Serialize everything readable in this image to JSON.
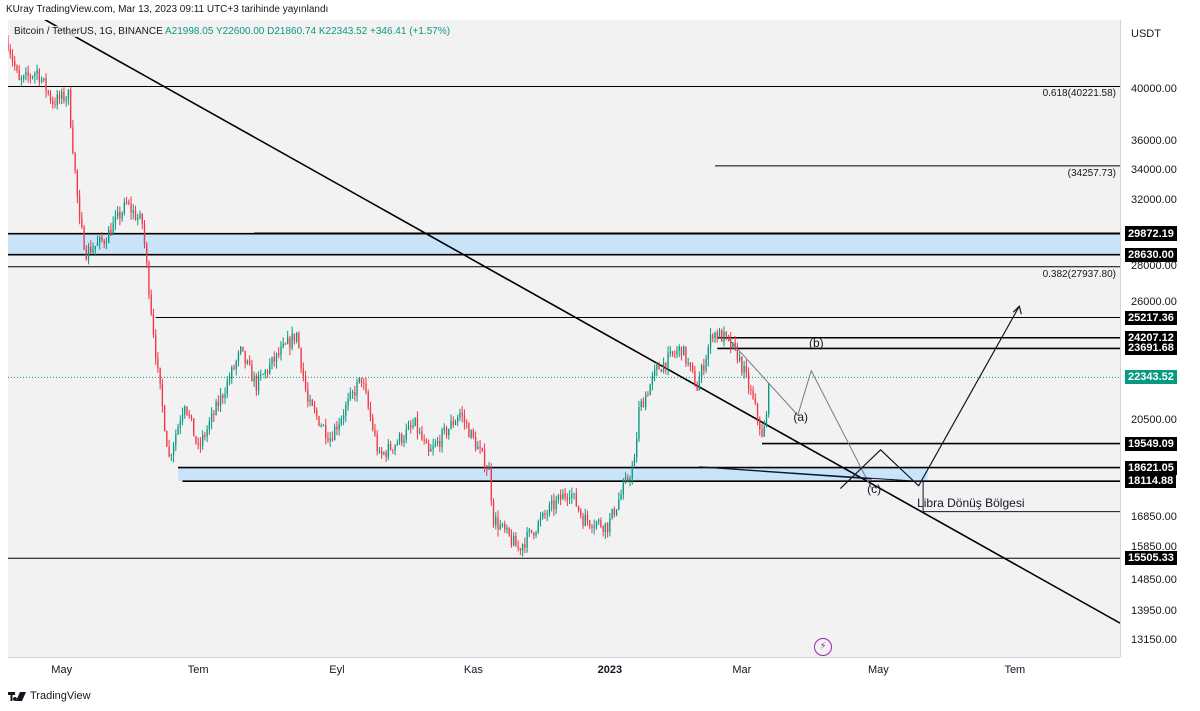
{
  "header": "KUray TradingView.com, Mar 13, 2023 09:11 UTC+3 tarihinde yayınlandı",
  "symbol": {
    "name": "Bitcoin / TetherUS, 1G, BINANCE",
    "ohlc": "A21998.05  Y22600.00  D21860.74  K22343.52  +346.41 (+1.57%)"
  },
  "colors": {
    "up": "#089981",
    "down": "#f23645",
    "zone": "#bbdefb",
    "line": "#000000",
    "projection": "#131722"
  },
  "chart_data": {
    "type": "candlestick",
    "y_scale": "log",
    "ylim": [
      12700,
      46000
    ],
    "unit_label": "USDT",
    "y_ticks": [
      40000,
      36000,
      34000,
      32000,
      28000,
      26000,
      20500,
      16850,
      15850,
      14850,
      13950,
      13150
    ],
    "y_tick_labels": [
      "40000.00",
      "36000.00",
      "34000.00",
      "32000.00",
      "28000.00",
      "26000.00",
      "20500.00",
      "16850.00",
      "15850.00",
      "14850.00",
      "13950.00",
      "13150.00"
    ],
    "x_ticks": [
      "May",
      "Tem",
      "Eyl",
      "Kas",
      "2023",
      "Mar",
      "May",
      "Tem"
    ],
    "x_range": [
      "2022-04-07",
      "2023-08-17"
    ],
    "x_tick_dates": [
      "2022-05-01",
      "2022-07-01",
      "2022-09-01",
      "2022-11-01",
      "2023-01-01",
      "2023-03-01",
      "2023-05-01",
      "2023-07-01"
    ],
    "price_path": [
      [
        "2022-04-07",
        44000
      ],
      [
        "2022-04-12",
        40500
      ],
      [
        "2022-04-20",
        41500
      ],
      [
        "2022-04-27",
        39000
      ],
      [
        "2022-05-04",
        39500
      ],
      [
        "2022-05-09",
        30500
      ],
      [
        "2022-05-12",
        28800
      ],
      [
        "2022-05-20",
        29500
      ],
      [
        "2022-05-30",
        31700
      ],
      [
        "2022-06-06",
        30500
      ],
      [
        "2022-06-13",
        22500
      ],
      [
        "2022-06-18",
        19000
      ],
      [
        "2022-06-25",
        21300
      ],
      [
        "2022-07-01",
        19300
      ],
      [
        "2022-07-20",
        23500
      ],
      [
        "2022-07-27",
        22000
      ],
      [
        "2022-08-03",
        23000
      ],
      [
        "2022-08-14",
        24400
      ],
      [
        "2022-08-19",
        21200
      ],
      [
        "2022-08-29",
        19800
      ],
      [
        "2022-09-12",
        22300
      ],
      [
        "2022-09-20",
        19000
      ],
      [
        "2022-10-06",
        20300
      ],
      [
        "2022-10-12",
        19100
      ],
      [
        "2022-10-26",
        20800
      ],
      [
        "2022-11-08",
        18500
      ],
      [
        "2022-11-10",
        16800
      ],
      [
        "2022-11-21",
        15800
      ],
      [
        "2022-12-05",
        17100
      ],
      [
        "2022-12-14",
        17800
      ],
      [
        "2022-12-20",
        16800
      ],
      [
        "2022-12-31",
        16550
      ],
      [
        "2023-01-12",
        18800
      ],
      [
        "2023-01-14",
        20900
      ],
      [
        "2023-01-22",
        22700
      ],
      [
        "2023-02-02",
        23700
      ],
      [
        "2023-02-09",
        21900
      ],
      [
        "2023-02-16",
        24500
      ],
      [
        "2023-02-21",
        24200
      ],
      [
        "2023-02-27",
        23400
      ],
      [
        "2023-03-03",
        22300
      ],
      [
        "2023-03-09",
        20300
      ],
      [
        "2023-03-10",
        19700
      ],
      [
        "2023-03-12",
        20600
      ],
      [
        "2023-03-13",
        22343.52
      ]
    ],
    "horizontal_levels": [
      40221.58,
      34257.73,
      29915.06,
      29872.19,
      28630.0,
      27937.8,
      25217.36,
      24207.12,
      23691.68,
      22343.52,
      19549.09,
      18621.05,
      18114.88,
      15505.33
    ],
    "price_flags": [
      {
        "label": "29915.06",
        "value": 29915.06
      },
      {
        "label": "29872.19",
        "value": 29872.19
      },
      {
        "label": "28630.00",
        "value": 28630.0
      },
      {
        "label": "25217.36",
        "value": 25217.36
      },
      {
        "label": "24207.12",
        "value": 24207.12
      },
      {
        "label": "23691.68",
        "value": 23691.68
      },
      {
        "label": "22343.52",
        "value": 22343.52,
        "last": true
      },
      {
        "label": "19549.09",
        "value": 19549.09
      },
      {
        "label": "18621.05",
        "value": 18621.05
      },
      {
        "label": "18114.88",
        "value": 18114.88
      },
      {
        "label": "15505.33",
        "value": 15505.33
      }
    ],
    "fib_labels": [
      {
        "label": "0.618(40221.58)",
        "value": 40221.58
      },
      {
        "label": "(34257.73)",
        "value": 34257.73
      },
      {
        "label": "0.382(27937.80)",
        "value": 27937.8
      }
    ],
    "zones": [
      {
        "from": 28630.0,
        "to": 29872.19,
        "start": "2022-04-07",
        "end": "2023-08-17"
      },
      {
        "from": 18114.88,
        "to": 18621.05,
        "start": "2022-06-22",
        "end": "2023-05-23"
      }
    ],
    "trendline": {
      "from": [
        "2022-04-07",
        48000
      ],
      "to": [
        "2023-08-17",
        13600
      ]
    },
    "wave_labels": [
      "(b)",
      "(a)",
      "(c)"
    ],
    "zone_label": "Libra Dönüş Bölgesi"
  },
  "footer": {
    "brand": "TradingView"
  }
}
